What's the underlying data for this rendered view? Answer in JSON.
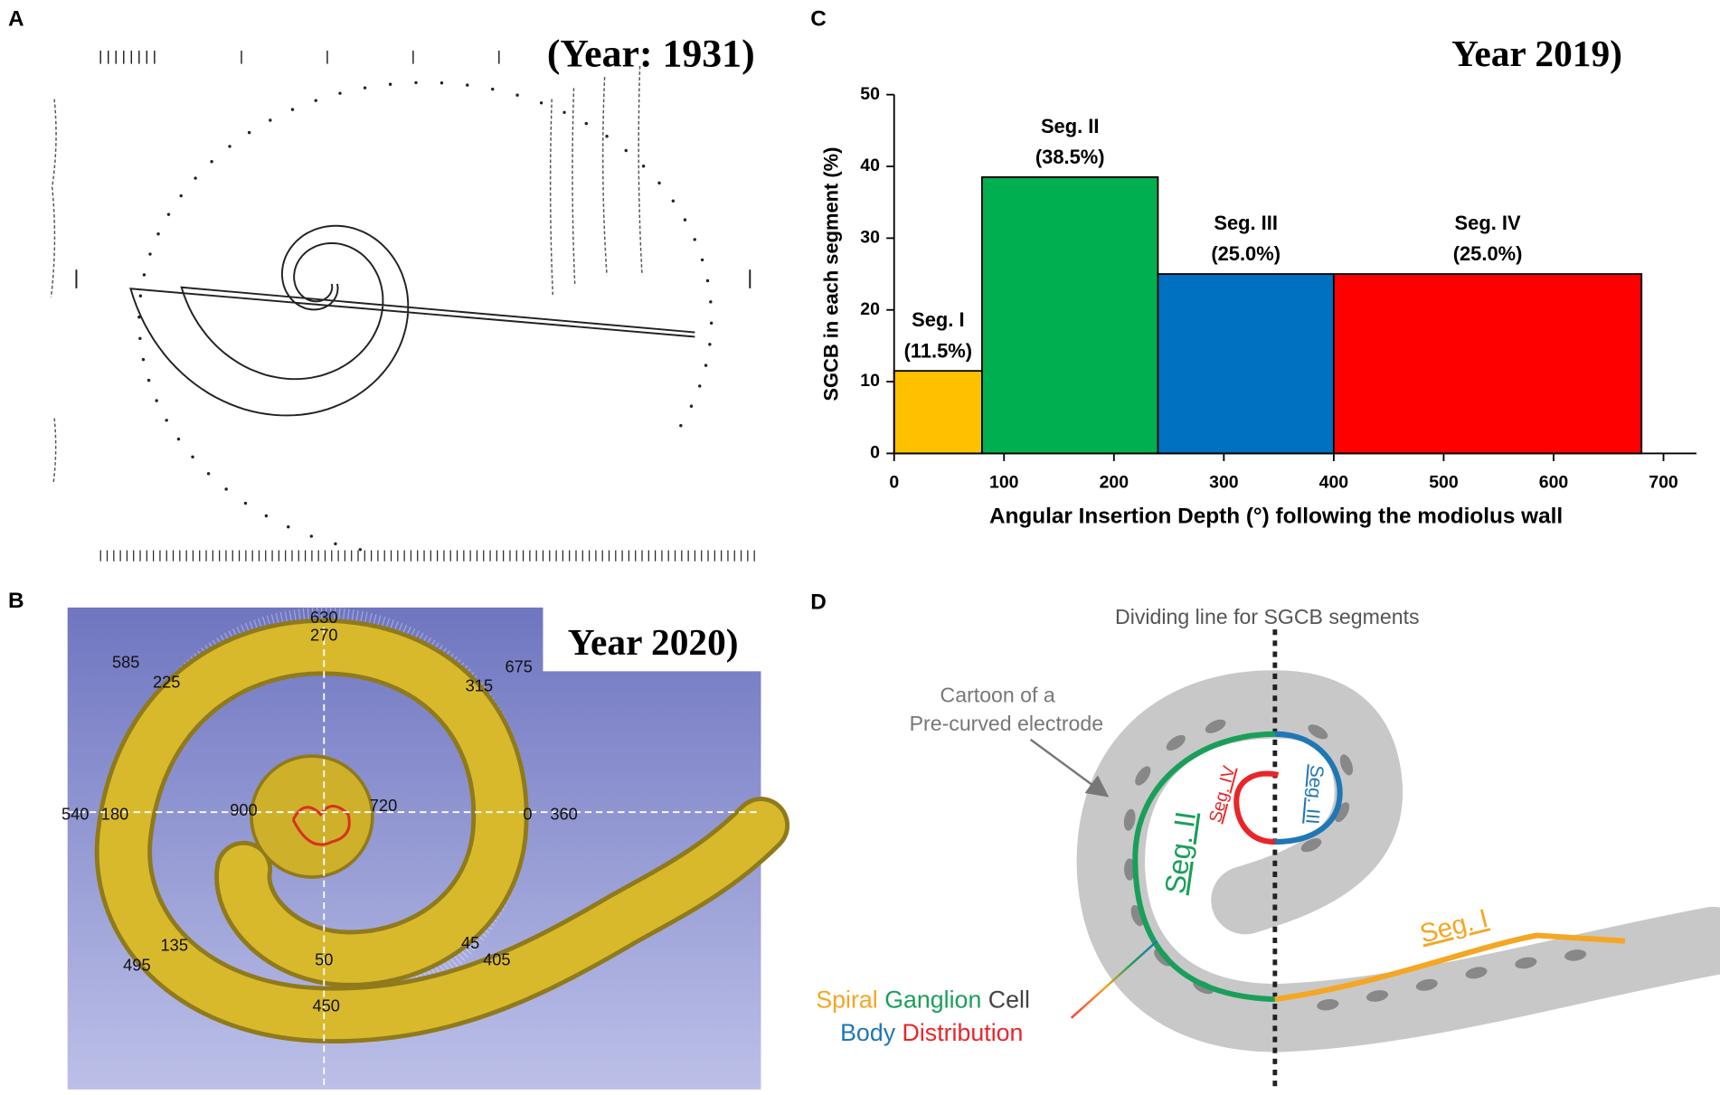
{
  "panels": {
    "A": {
      "label": "A",
      "title": "(Year: 1931)"
    },
    "B": {
      "label": "B",
      "title": "Year 2020)",
      "angle_labels": [
        "630",
        "270",
        "585",
        "225",
        "675",
        "315",
        "540",
        "180",
        "900",
        "720",
        "0",
        "360",
        "135",
        "495",
        "45",
        "405",
        "50",
        "450"
      ]
    },
    "D": {
      "label": "D",
      "dividing_line": "Dividing line for SGCB segments",
      "cartoon": [
        "Cartoon of a",
        "Pre-curved electrode"
      ],
      "segments": [
        "Seg. I",
        "Seg. II",
        "Seg. III",
        "Seg. IV"
      ],
      "legend": [
        "Spiral",
        "Ganglion",
        "Cell",
        "Body",
        "Distribution"
      ]
    }
  },
  "chart_data": {
    "type": "histogram",
    "label": "C",
    "title": "Year 2019)",
    "x_label": "Angular Insertion Depth (°) following the modiolus wall",
    "y_label": "SGCB in each segment (%)",
    "bins": [
      0,
      80,
      240,
      400,
      680
    ],
    "values": [
      11.5,
      38.5,
      25.0,
      25.0
    ],
    "segment_labels": [
      "Seg. I",
      "Seg. II",
      "Seg. III",
      "Seg. IV"
    ],
    "value_labels": [
      "(11.5%)",
      "(38.5%)",
      "(25.0%)",
      "(25.0%)"
    ],
    "colors": [
      "#ffc000",
      "#00b050",
      "#0070c0",
      "#ff0000"
    ],
    "xlim": [
      0,
      730
    ],
    "xticks": [
      0,
      100,
      200,
      300,
      400,
      500,
      600,
      700
    ],
    "ylim": [
      0,
      50
    ],
    "yticks": [
      0,
      10,
      20,
      30,
      40,
      50
    ]
  }
}
